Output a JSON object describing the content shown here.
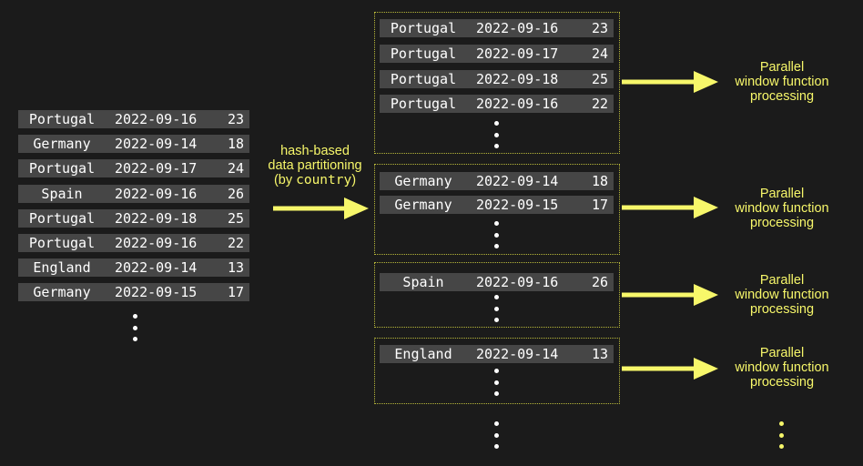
{
  "colors": {
    "background": "#1b1b1b",
    "row": "#464646",
    "accent": "#f7f76a"
  },
  "source_rows": [
    {
      "country": "Portugal",
      "date": "2022-09-16",
      "value": "23"
    },
    {
      "country": "Germany",
      "date": "2022-09-14",
      "value": "18"
    },
    {
      "country": "Portugal",
      "date": "2022-09-17",
      "value": "24"
    },
    {
      "country": "Spain",
      "date": "2022-09-16",
      "value": "26"
    },
    {
      "country": "Portugal",
      "date": "2022-09-18",
      "value": "25"
    },
    {
      "country": "Portugal",
      "date": "2022-09-16",
      "value": "22"
    },
    {
      "country": "England",
      "date": "2022-09-14",
      "value": "13"
    },
    {
      "country": "Germany",
      "date": "2022-09-15",
      "value": "17"
    }
  ],
  "partition_label": {
    "line1": "hash-based",
    "line2": "data partitioning",
    "line3_open": "(by ",
    "line3_code": "country",
    "line3_close": ")"
  },
  "partitions": [
    {
      "rows": [
        {
          "country": "Portugal",
          "date": "2022-09-16",
          "value": "23"
        },
        {
          "country": "Portugal",
          "date": "2022-09-17",
          "value": "24"
        },
        {
          "country": "Portugal",
          "date": "2022-09-18",
          "value": "25"
        },
        {
          "country": "Portugal",
          "date": "2022-09-16",
          "value": "22"
        }
      ]
    },
    {
      "rows": [
        {
          "country": "Germany",
          "date": "2022-09-14",
          "value": "18"
        },
        {
          "country": "Germany",
          "date": "2022-09-15",
          "value": "17"
        }
      ]
    },
    {
      "rows": [
        {
          "country": "Spain",
          "date": "2022-09-16",
          "value": "26"
        }
      ]
    },
    {
      "rows": [
        {
          "country": "England",
          "date": "2022-09-14",
          "value": "13"
        }
      ]
    }
  ],
  "processing_label": {
    "line1": "Parallel",
    "line2": "window function",
    "line3": "processing"
  }
}
